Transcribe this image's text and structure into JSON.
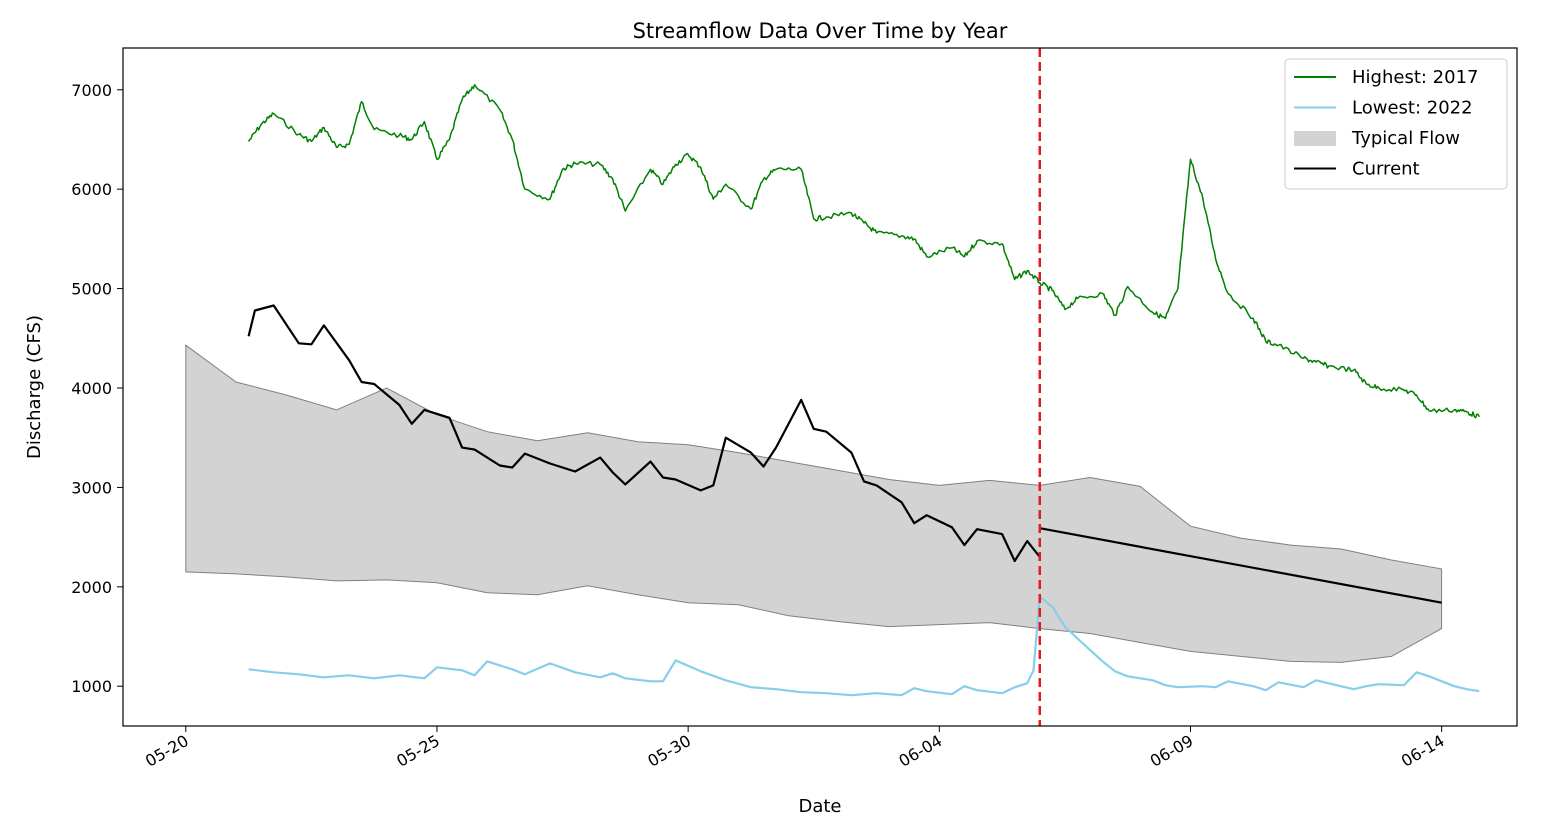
{
  "chart_data": {
    "type": "line",
    "title": "Streamflow Data Over Time by Year",
    "xlabel": "Date",
    "ylabel": "Discharge (CFS)",
    "x_ticks": [
      "05-20",
      "05-25",
      "05-30",
      "06-04",
      "06-09",
      "06-14"
    ],
    "y_ticks": [
      1000,
      2000,
      3000,
      4000,
      5000,
      6000,
      7000
    ],
    "xlim": [
      "05-18 18:00",
      "06-15 12:00"
    ],
    "ylim": [
      600,
      7420
    ],
    "grid": false,
    "legend_position": "top-right",
    "current_date_marker": {
      "x": "06-06 00:00",
      "color": "#e41a1c",
      "style": "dashed"
    },
    "series": [
      {
        "name": "Highest: 2017",
        "type": "line",
        "color": "#008000",
        "points": [
          [
            "05-21 06:00",
            6480
          ],
          [
            "05-21 12:00",
            6650
          ],
          [
            "05-21 18:00",
            6760
          ],
          [
            "05-22 06:00",
            6550
          ],
          [
            "05-22 12:00",
            6480
          ],
          [
            "05-22 18:00",
            6620
          ],
          [
            "05-23 00:00",
            6420
          ],
          [
            "05-23 06:00",
            6450
          ],
          [
            "05-23 12:00",
            6880
          ],
          [
            "05-23 18:00",
            6600
          ],
          [
            "05-24 06:00",
            6540
          ],
          [
            "05-24 12:00",
            6500
          ],
          [
            "05-24 18:00",
            6680
          ],
          [
            "05-25 00:00",
            6300
          ],
          [
            "05-25 06:00",
            6500
          ],
          [
            "05-25 12:00",
            6900
          ],
          [
            "05-25 18:00",
            7050
          ],
          [
            "05-26 06:00",
            6800
          ],
          [
            "05-26 12:00",
            6500
          ],
          [
            "05-26 18:00",
            6000
          ],
          [
            "05-27 06:00",
            5900
          ],
          [
            "05-27 12:00",
            6200
          ],
          [
            "05-27 18:00",
            6260
          ],
          [
            "05-28 06:00",
            6250
          ],
          [
            "05-28 12:00",
            6100
          ],
          [
            "05-28 18:00",
            5780
          ],
          [
            "05-29 06:00",
            6200
          ],
          [
            "05-29 12:00",
            6050
          ],
          [
            "05-29 18:00",
            6250
          ],
          [
            "05-30 00:00",
            6350
          ],
          [
            "05-30 06:00",
            6220
          ],
          [
            "05-30 12:00",
            5900
          ],
          [
            "05-30 18:00",
            6050
          ],
          [
            "05-31 06:00",
            5800
          ],
          [
            "05-31 12:00",
            6100
          ],
          [
            "05-31 18:00",
            6200
          ],
          [
            "06-01 06:00",
            6200
          ],
          [
            "06-01 12:00",
            5700
          ],
          [
            "06-01 18:00",
            5720
          ],
          [
            "06-02 06:00",
            5760
          ],
          [
            "06-02 12:00",
            5660
          ],
          [
            "06-02 18:00",
            5560
          ],
          [
            "06-03 06:00",
            5530
          ],
          [
            "06-03 12:00",
            5500
          ],
          [
            "06-03 18:00",
            5320
          ],
          [
            "06-04 06:00",
            5410
          ],
          [
            "06-04 12:00",
            5320
          ],
          [
            "06-04 18:00",
            5480
          ],
          [
            "06-05 06:00",
            5450
          ],
          [
            "06-05 12:00",
            5090
          ],
          [
            "06-05 18:00",
            5180
          ],
          [
            "06-06 00:00",
            5060
          ],
          [
            "06-06 06:00",
            4980
          ],
          [
            "06-06 12:00",
            4790
          ],
          [
            "06-06 18:00",
            4900
          ],
          [
            "06-07 06:00",
            4950
          ],
          [
            "06-07 12:00",
            4730
          ],
          [
            "06-07 18:00",
            5020
          ],
          [
            "06-08 06:00",
            4760
          ],
          [
            "06-08 12:00",
            4700
          ],
          [
            "06-08 18:00",
            5000
          ],
          [
            "06-09 00:00",
            6300
          ],
          [
            "06-09 06:00",
            5900
          ],
          [
            "06-09 12:00",
            5300
          ],
          [
            "06-09 18:00",
            4950
          ],
          [
            "06-10 06:00",
            4700
          ],
          [
            "06-10 12:00",
            4470
          ],
          [
            "06-10 18:00",
            4430
          ],
          [
            "06-11 06:00",
            4300
          ],
          [
            "06-11 12:00",
            4260
          ],
          [
            "06-11 18:00",
            4220
          ],
          [
            "06-12 06:00",
            4180
          ],
          [
            "06-12 12:00",
            4040
          ],
          [
            "06-12 18:00",
            4000
          ],
          [
            "06-13 06:00",
            3980
          ],
          [
            "06-13 12:00",
            3930
          ],
          [
            "06-13 18:00",
            3770
          ],
          [
            "06-14 06:00",
            3780
          ],
          [
            "06-14 12:00",
            3760
          ],
          [
            "06-14 18:00",
            3710
          ]
        ]
      },
      {
        "name": "Lowest: 2022",
        "type": "line",
        "color": "#87ceeb",
        "points": [
          [
            "05-21 06:00",
            1170
          ],
          [
            "05-21 18:00",
            1140
          ],
          [
            "05-22 06:00",
            1120
          ],
          [
            "05-22 18:00",
            1090
          ],
          [
            "05-23 06:00",
            1110
          ],
          [
            "05-23 18:00",
            1080
          ],
          [
            "05-24 06:00",
            1110
          ],
          [
            "05-24 18:00",
            1080
          ],
          [
            "05-25 00:00",
            1190
          ],
          [
            "05-25 12:00",
            1160
          ],
          [
            "05-25 18:00",
            1110
          ],
          [
            "05-26 00:00",
            1250
          ],
          [
            "05-26 12:00",
            1170
          ],
          [
            "05-26 18:00",
            1120
          ],
          [
            "05-27 06:00",
            1230
          ],
          [
            "05-27 18:00",
            1140
          ],
          [
            "05-28 06:00",
            1090
          ],
          [
            "05-28 12:00",
            1130
          ],
          [
            "05-28 18:00",
            1080
          ],
          [
            "05-29 06:00",
            1050
          ],
          [
            "05-29 12:00",
            1050
          ],
          [
            "05-29 18:00",
            1260
          ],
          [
            "05-30 06:00",
            1150
          ],
          [
            "05-30 18:00",
            1060
          ],
          [
            "05-31 06:00",
            990
          ],
          [
            "05-31 18:00",
            970
          ],
          [
            "06-01 06:00",
            940
          ],
          [
            "06-01 18:00",
            930
          ],
          [
            "06-02 06:00",
            910
          ],
          [
            "06-02 18:00",
            930
          ],
          [
            "06-03 06:00",
            910
          ],
          [
            "06-03 12:00",
            980
          ],
          [
            "06-03 18:00",
            950
          ],
          [
            "06-04 06:00",
            920
          ],
          [
            "06-04 12:00",
            1000
          ],
          [
            "06-04 18:00",
            960
          ],
          [
            "06-05 06:00",
            930
          ],
          [
            "06-05 12:00",
            990
          ],
          [
            "06-05 18:00",
            1030
          ],
          [
            "06-05 21:00",
            1160
          ],
          [
            "06-06 00:00",
            1900
          ],
          [
            "06-06 06:00",
            1800
          ],
          [
            "06-06 12:00",
            1600
          ],
          [
            "06-06 18:00",
            1480
          ],
          [
            "06-07 06:00",
            1250
          ],
          [
            "06-07 12:00",
            1150
          ],
          [
            "06-07 18:00",
            1100
          ],
          [
            "06-08 06:00",
            1060
          ],
          [
            "06-08 12:00",
            1010
          ],
          [
            "06-08 18:00",
            990
          ],
          [
            "06-09 06:00",
            1000
          ],
          [
            "06-09 12:00",
            990
          ],
          [
            "06-09 18:00",
            1050
          ],
          [
            "06-10 06:00",
            1000
          ],
          [
            "06-10 12:00",
            960
          ],
          [
            "06-10 18:00",
            1040
          ],
          [
            "06-11 06:00",
            990
          ],
          [
            "06-11 12:00",
            1060
          ],
          [
            "06-11 18:00",
            1030
          ],
          [
            "06-12 06:00",
            970
          ],
          [
            "06-12 12:00",
            1000
          ],
          [
            "06-12 18:00",
            1020
          ],
          [
            "06-13 06:00",
            1010
          ],
          [
            "06-13 12:00",
            1140
          ],
          [
            "06-13 18:00",
            1100
          ],
          [
            "06-14 06:00",
            1000
          ],
          [
            "06-14 12:00",
            970
          ],
          [
            "06-14 18:00",
            950
          ]
        ]
      },
      {
        "name": "Typical Flow",
        "type": "area",
        "color": "#d3d3d3",
        "x": [
          "05-20",
          "05-21",
          "05-22",
          "05-23",
          "05-24",
          "05-25",
          "05-26",
          "05-27",
          "05-28",
          "05-29",
          "05-30",
          "05-31",
          "06-01",
          "06-02",
          "06-03",
          "06-04",
          "06-05",
          "06-06",
          "06-07",
          "06-08",
          "06-09",
          "06-10",
          "06-11",
          "06-12",
          "06-13",
          "06-14"
        ],
        "upper": [
          4430,
          4060,
          3930,
          3780,
          4000,
          3730,
          3560,
          3470,
          3550,
          3460,
          3430,
          3350,
          3260,
          3170,
          3080,
          3020,
          3070,
          3020,
          3100,
          3010,
          2610,
          2490,
          2420,
          2380,
          2270,
          2180
        ],
        "lower": [
          2150,
          2130,
          2100,
          2060,
          2070,
          2040,
          1940,
          1920,
          2010,
          1920,
          1840,
          1820,
          1710,
          1650,
          1600,
          1620,
          1640,
          1580,
          1530,
          1440,
          1350,
          1300,
          1250,
          1240,
          1300,
          1580
        ]
      },
      {
        "name": "Current",
        "type": "line",
        "color": "#000000",
        "points": [
          [
            "05-21 06:00",
            4520
          ],
          [
            "05-21 09:00",
            4780
          ],
          [
            "05-21 18:00",
            4830
          ],
          [
            "05-22 06:00",
            4450
          ],
          [
            "05-22 12:00",
            4440
          ],
          [
            "05-22 18:00",
            4630
          ],
          [
            "05-23 06:00",
            4280
          ],
          [
            "05-23 12:00",
            4060
          ],
          [
            "05-23 18:00",
            4040
          ],
          [
            "05-24 06:00",
            3830
          ],
          [
            "05-24 12:00",
            3640
          ],
          [
            "05-24 18:00",
            3780
          ],
          [
            "05-25 06:00",
            3700
          ],
          [
            "05-25 12:00",
            3400
          ],
          [
            "05-25 18:00",
            3380
          ],
          [
            "05-26 06:00",
            3220
          ],
          [
            "05-26 12:00",
            3200
          ],
          [
            "05-26 18:00",
            3340
          ],
          [
            "05-27 06:00",
            3240
          ],
          [
            "05-27 12:00",
            3200
          ],
          [
            "05-27 18:00",
            3160
          ],
          [
            "05-28 06:00",
            3300
          ],
          [
            "05-28 12:00",
            3150
          ],
          [
            "05-28 18:00",
            3030
          ],
          [
            "05-29 06:00",
            3260
          ],
          [
            "05-29 12:00",
            3100
          ],
          [
            "05-29 18:00",
            3080
          ],
          [
            "05-30 06:00",
            2970
          ],
          [
            "05-30 12:00",
            3020
          ],
          [
            "05-30 18:00",
            3500
          ],
          [
            "05-31 06:00",
            3350
          ],
          [
            "05-31 12:00",
            3210
          ],
          [
            "05-31 18:00",
            3400
          ],
          [
            "06-01 06:00",
            3880
          ],
          [
            "06-01 12:00",
            3590
          ],
          [
            "06-01 18:00",
            3560
          ],
          [
            "06-02 06:00",
            3350
          ],
          [
            "06-02 12:00",
            3060
          ],
          [
            "06-02 18:00",
            3020
          ],
          [
            "06-03 06:00",
            2850
          ],
          [
            "06-03 12:00",
            2640
          ],
          [
            "06-03 18:00",
            2720
          ],
          [
            "06-04 06:00",
            2600
          ],
          [
            "06-04 12:00",
            2420
          ],
          [
            "06-04 18:00",
            2580
          ],
          [
            "06-05 06:00",
            2530
          ],
          [
            "06-05 12:00",
            2260
          ],
          [
            "06-05 18:00",
            2460
          ],
          [
            "06-06 00:00",
            2300
          ]
        ],
        "forecast_points": [
          [
            "06-06 00:00",
            2590
          ],
          [
            "06-14 00:00",
            1840
          ]
        ]
      }
    ]
  }
}
